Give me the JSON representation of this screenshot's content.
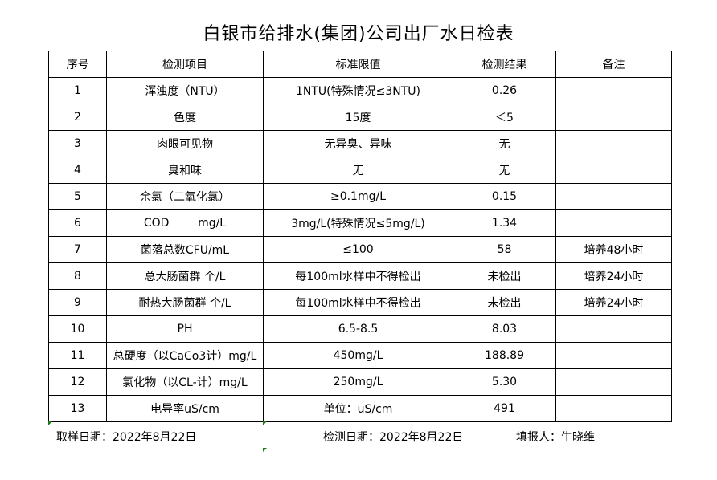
{
  "title": "白银市给排水(集团)公司出厂水日检表",
  "headers": [
    "序号",
    "检测项目",
    "标准限值",
    "检测结果",
    "备注"
  ],
  "rows": [
    [
      "1",
      "浑浊度（NTU）",
      "1NTU(特殊情况≤3NTU)",
      "0.26",
      ""
    ],
    [
      "2",
      "色度",
      "15度",
      "＜5",
      ""
    ],
    [
      "3",
      "肉眼可见物",
      "无异臭、异味",
      "无",
      ""
    ],
    [
      "4",
      "臭和味",
      "无",
      "无",
      ""
    ],
    [
      "5",
      "余氯（二氧化氯）",
      "≥0.1mg/L",
      "0.15",
      ""
    ],
    [
      "6",
      "COD        mg/L",
      "3mg/L(特殊情况≤5mg/L)",
      "1.34",
      ""
    ],
    [
      "7",
      "菌落总数CFU/mL",
      "≤100",
      "58",
      "培养48小时"
    ],
    [
      "8",
      "总大肠菌群 个/L",
      "每100ml水样中不得检出",
      "未检出",
      "培养24小时"
    ],
    [
      "9",
      "耐热大肠菌群 个/L",
      "每100ml水样中不得检出",
      "未检出",
      "培养24小时"
    ],
    [
      "10",
      "PH",
      "6.5-8.5",
      "8.03",
      ""
    ],
    [
      "11",
      "总硬度（以CaCo3计）mg/L",
      "450mg/L",
      "188.89",
      ""
    ],
    [
      "12",
      "氯化物（以CL-计）mg/L",
      "250mg/L",
      "5.30",
      ""
    ],
    [
      "13",
      "电导率uS/cm",
      "单位：uS/cm",
      "491",
      ""
    ]
  ],
  "footer": {
    "sample_date": "取样日期：2022年8月22日",
    "test_date": "检测日期：2022年8月22日",
    "reporter": "填报人：牛晓维"
  }
}
